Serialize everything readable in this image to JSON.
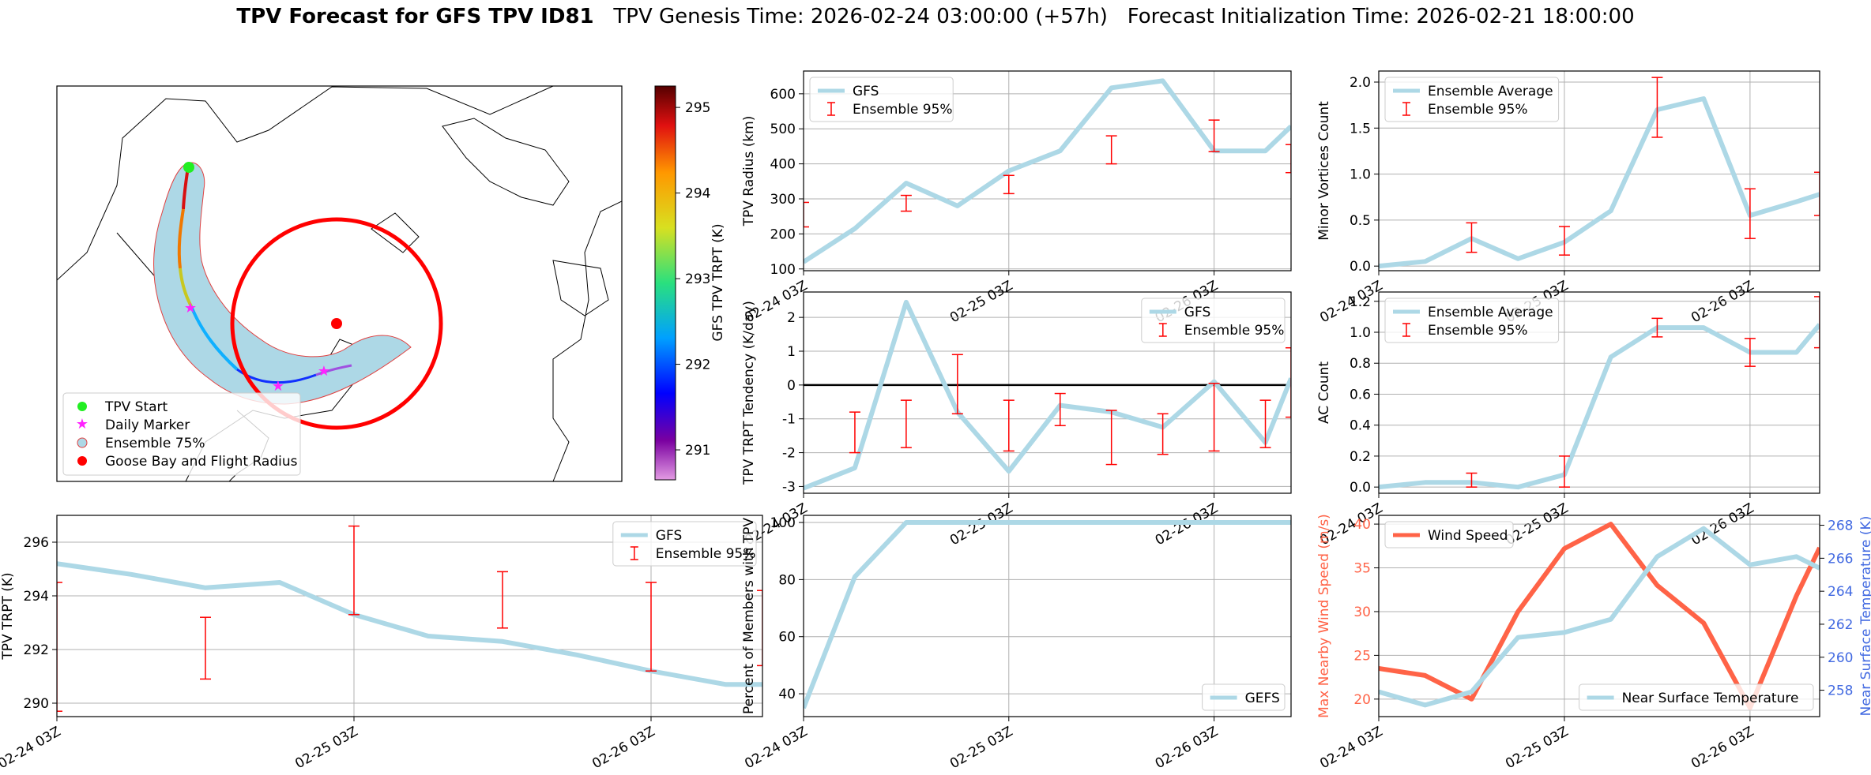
{
  "title": {
    "bold": "TPV Forecast for GFS TPV ID81",
    "genesis": "TPV Genesis Time: 2026-02-24 03:00:00 (+57h)",
    "init": "Forecast Initialization Time: 2026-02-21 18:00:00"
  },
  "colors": {
    "gfs": "#add8e6",
    "ensemble": "#ff0000",
    "wind": "#ff6347",
    "temp_axis": "#4169e1",
    "grid": "#b0b0b0"
  },
  "map": {
    "legend": [
      "TPV Start",
      "Daily Marker",
      "Ensemble 75%",
      "Goose Bay and Flight Radius"
    ],
    "colorbar_label": "GFS TPV TRPT (K)",
    "colorbar_ticks": [
      291,
      292,
      293,
      294,
      295
    ],
    "colorbar_range": [
      290.65,
      295.25
    ]
  },
  "chart_data": [
    {
      "id": "radius",
      "type": "line",
      "ylabel": "TPV Radius (km)",
      "ylim": [
        95,
        665
      ],
      "yticks": [
        100,
        200,
        300,
        400,
        500,
        600
      ],
      "xlim": [
        0,
        19
      ],
      "xticks": [
        0,
        8,
        16
      ],
      "xticklabels": [
        "02-24 03Z",
        "02-25 03Z",
        "02-26 03Z"
      ],
      "series": [
        {
          "name": "GFS",
          "x": [
            0,
            2,
            4,
            6,
            8,
            10,
            12,
            14,
            16,
            18,
            19
          ],
          "y": [
            120,
            215,
            345,
            280,
            380,
            437,
            617,
            637,
            437,
            437,
            507
          ]
        }
      ],
      "errorbars": {
        "name": "Ensemble 95%",
        "x": [
          0,
          4,
          8,
          12,
          16,
          19
        ],
        "low": [
          220,
          265,
          315,
          400,
          435,
          375
        ],
        "high": [
          290,
          310,
          367,
          480,
          525,
          455
        ]
      },
      "legend": "upper left"
    },
    {
      "id": "minor",
      "type": "line",
      "ylabel": "Minor Vortices Count",
      "ylim": [
        -0.05,
        2.12
      ],
      "yticks": [
        0.0,
        0.5,
        1.0,
        1.5,
        2.0
      ],
      "xlim": [
        0,
        19
      ],
      "xticks": [
        0,
        8,
        16
      ],
      "xticklabels": [
        "02-24 03Z",
        "02-25 03Z",
        "02-26 03Z"
      ],
      "series": [
        {
          "name": "Ensemble Average",
          "x": [
            0,
            2,
            4,
            6,
            8,
            10,
            12,
            14,
            16,
            18,
            19
          ],
          "y": [
            0.0,
            0.05,
            0.3,
            0.08,
            0.26,
            0.6,
            1.7,
            1.82,
            0.55,
            0.7,
            0.78
          ]
        }
      ],
      "errorbars": {
        "name": "Ensemble 95%",
        "x": [
          4,
          8,
          12,
          16,
          19
        ],
        "low": [
          0.15,
          0.12,
          1.4,
          0.3,
          0.55
        ],
        "high": [
          0.47,
          0.43,
          2.05,
          0.84,
          1.02
        ]
      },
      "legend": "upper left"
    },
    {
      "id": "tendency",
      "type": "line",
      "ylabel": "TPV TRPT Tendency (K/day)",
      "ylim": [
        -3.2,
        2.75
      ],
      "yticks": [
        -3,
        -2,
        -1,
        0,
        1,
        2
      ],
      "xlim": [
        0,
        19
      ],
      "xticks": [
        0,
        8,
        16
      ],
      "xticklabels": [
        "02-24 03Z",
        "02-25 03Z",
        "02-26 03Z"
      ],
      "zero_line": true,
      "series": [
        {
          "name": "GFS",
          "x": [
            0,
            2,
            4,
            6,
            8,
            10,
            12,
            14,
            16,
            18,
            19
          ],
          "y": [
            -3.05,
            -2.45,
            2.45,
            -0.8,
            -2.55,
            -0.6,
            -0.8,
            -1.25,
            0.1,
            -1.7,
            0.2
          ]
        }
      ],
      "errorbars": {
        "name": "Ensemble 95%",
        "x": [
          2,
          4,
          6,
          8,
          10,
          12,
          14,
          16,
          18,
          19
        ],
        "low": [
          -2.0,
          -1.85,
          -0.85,
          -1.95,
          -1.2,
          -2.35,
          -2.05,
          -1.95,
          -1.85,
          -0.95
        ],
        "high": [
          -0.8,
          -0.45,
          0.9,
          -0.45,
          -0.25,
          -0.75,
          -0.85,
          0.05,
          -0.45,
          1.1
        ]
      },
      "legend": "upper right"
    },
    {
      "id": "ac",
      "type": "line",
      "ylabel": "AC Count",
      "ylim": [
        -0.04,
        1.26
      ],
      "yticks": [
        0.0,
        0.2,
        0.4,
        0.6,
        0.8,
        1.0,
        1.2
      ],
      "xlim": [
        0,
        19
      ],
      "xticks": [
        0,
        8,
        16
      ],
      "xticklabels": [
        "02-24 03Z",
        "02-25 03Z",
        "02-26 03Z"
      ],
      "series": [
        {
          "name": "Ensemble Average",
          "x": [
            0,
            2,
            4,
            6,
            8,
            10,
            12,
            14,
            16,
            18,
            19
          ],
          "y": [
            0.0,
            0.03,
            0.03,
            0.0,
            0.08,
            0.84,
            1.03,
            1.03,
            0.87,
            0.87,
            1.05
          ]
        }
      ],
      "errorbars": {
        "name": "Ensemble 95%",
        "x": [
          4,
          8,
          12,
          16,
          19
        ],
        "low": [
          0.0,
          0.0,
          0.97,
          0.78,
          0.9
        ],
        "high": [
          0.09,
          0.2,
          1.09,
          0.96,
          1.23
        ]
      },
      "legend": "upper left"
    },
    {
      "id": "trpt",
      "type": "line",
      "ylabel": "TPV TRPT (K)",
      "ylim": [
        289.5,
        297.0
      ],
      "yticks": [
        290,
        292,
        294,
        296
      ],
      "xlim": [
        0,
        19
      ],
      "xticks": [
        0,
        8,
        16
      ],
      "xticklabels": [
        "02-24 03Z",
        "02-25 03Z",
        "02-26 03Z"
      ],
      "series": [
        {
          "name": "GFS",
          "x": [
            0,
            2,
            4,
            6,
            8,
            10,
            12,
            14,
            16,
            18,
            19
          ],
          "y": [
            295.2,
            294.8,
            294.3,
            294.5,
            293.3,
            292.5,
            292.3,
            291.8,
            291.2,
            290.7,
            290.7
          ]
        }
      ],
      "errorbars": {
        "name": "Ensemble 95%",
        "x": [
          0,
          4,
          8,
          12,
          16,
          19
        ],
        "low": [
          289.7,
          290.9,
          293.3,
          292.8,
          291.2,
          291.4
        ],
        "high": [
          294.5,
          293.2,
          296.6,
          294.9,
          294.5,
          294.2
        ]
      },
      "legend": "upper right"
    },
    {
      "id": "percent",
      "type": "line",
      "ylabel": "Percent of Members with TPV",
      "ylim": [
        32,
        102.5
      ],
      "yticks": [
        40,
        60,
        80,
        100
      ],
      "xlim": [
        0,
        19
      ],
      "xticks": [
        0,
        8,
        16
      ],
      "xticklabels": [
        "02-24 03Z",
        "02-25 03Z",
        "02-26 03Z"
      ],
      "series": [
        {
          "name": "GEFS",
          "x": [
            0,
            2,
            4,
            6,
            8,
            10,
            12,
            14,
            16,
            18,
            19
          ],
          "y": [
            35,
            81,
            100,
            100,
            100,
            100,
            100,
            100,
            100,
            100,
            100
          ]
        }
      ],
      "legend": "lower right"
    },
    {
      "id": "wind",
      "type": "line",
      "ylabel": "Max Nearby Wind Speed (m/s)",
      "ylabel2": "Near Surface Temperature (K)",
      "ylim": [
        18,
        41
      ],
      "yticks": [
        20,
        25,
        30,
        35,
        40
      ],
      "ylim2": [
        256.4,
        268.6
      ],
      "yticks2": [
        258,
        260,
        262,
        264,
        266,
        268
      ],
      "xlim": [
        0,
        19
      ],
      "xticks": [
        0,
        8,
        16
      ],
      "xticklabels": [
        "02-24 03Z",
        "02-25 03Z",
        "02-26 03Z"
      ],
      "series": [
        {
          "name": "Wind Speed",
          "axis": "left",
          "x": [
            0,
            2,
            4,
            6,
            8,
            10,
            12,
            14,
            16,
            18,
            19
          ],
          "y": [
            23.5,
            22.7,
            20.0,
            30.0,
            37.2,
            40.0,
            33.0,
            28.7,
            19.0,
            31.8,
            37.3
          ]
        },
        {
          "name": "Near Surface Temperature",
          "axis": "right",
          "x": [
            0,
            2,
            4,
            6,
            8,
            10,
            12,
            14,
            16,
            18,
            19
          ],
          "y": [
            257.9,
            257.1,
            257.9,
            261.2,
            261.5,
            262.3,
            266.1,
            267.8,
            265.6,
            266.1,
            265.4
          ]
        }
      ],
      "legend": "upper left / lower right"
    }
  ]
}
